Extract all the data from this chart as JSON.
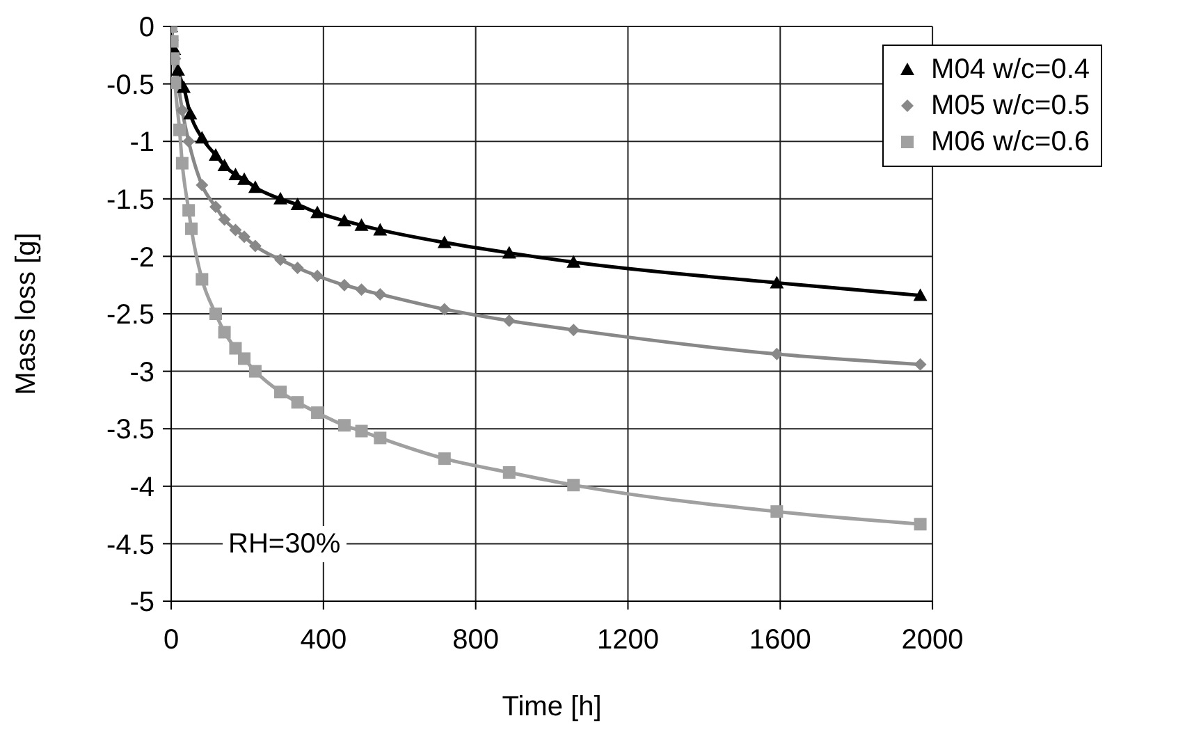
{
  "chart_data": {
    "type": "line",
    "xlabel": "Time [h]",
    "ylabel": "Mass loss [g]",
    "xlim": [
      0,
      2000
    ],
    "xticks": [
      0,
      400,
      800,
      1200,
      1600,
      2000
    ],
    "ylim": [
      -5,
      0
    ],
    "yticks": [
      0,
      -0.5,
      -1,
      -1.5,
      -2,
      -2.5,
      -3,
      -3.5,
      -4,
      -4.5,
      -5
    ],
    "grid": true,
    "legend": "top right",
    "annotations": [
      "RH=30%"
    ],
    "series": [
      {
        "name": "M04 w/c=0.4",
        "color": "#000000",
        "marker": "triangle",
        "x": [
          0,
          8,
          18,
          33,
          50,
          81,
          117,
          140,
          169,
          192,
          221,
          287,
          332,
          384,
          455,
          500,
          549,
          718,
          888,
          1057,
          1591,
          1968
        ],
        "values": [
          0,
          -0.2,
          -0.38,
          -0.53,
          -0.76,
          -0.97,
          -1.12,
          -1.21,
          -1.29,
          -1.33,
          -1.4,
          -1.5,
          -1.55,
          -1.62,
          -1.69,
          -1.73,
          -1.77,
          -1.88,
          -1.97,
          -2.05,
          -2.23,
          -2.34
        ]
      },
      {
        "name": "M05 w/c=0.5",
        "color": "#888888",
        "marker": "diamond",
        "x": [
          0,
          4,
          10,
          29,
          46,
          81,
          117,
          140,
          169,
          192,
          221,
          287,
          332,
          384,
          455,
          500,
          549,
          718,
          888,
          1057,
          1591,
          1968
        ],
        "values": [
          0,
          -0.12,
          -0.28,
          -0.73,
          -1.0,
          -1.38,
          -1.57,
          -1.68,
          -1.77,
          -1.83,
          -1.91,
          -2.03,
          -2.1,
          -2.17,
          -2.25,
          -2.29,
          -2.33,
          -2.46,
          -2.56,
          -2.64,
          -2.85,
          -2.94
        ]
      },
      {
        "name": "M06 w/c=0.6",
        "color": "#a0a0a0",
        "marker": "square",
        "x": [
          0,
          3,
          6,
          10,
          22,
          29,
          46,
          53,
          81,
          117,
          140,
          169,
          192,
          221,
          287,
          332,
          384,
          455,
          500,
          549,
          718,
          888,
          1057,
          1591,
          1968
        ],
        "values": [
          0,
          -0.13,
          -0.28,
          -0.49,
          -0.9,
          -1.19,
          -1.6,
          -1.76,
          -2.2,
          -2.5,
          -2.66,
          -2.8,
          -2.89,
          -3.0,
          -3.18,
          -3.27,
          -3.36,
          -3.47,
          -3.52,
          -3.58,
          -3.76,
          -3.88,
          -3.99,
          -4.22,
          -4.33
        ]
      }
    ]
  }
}
